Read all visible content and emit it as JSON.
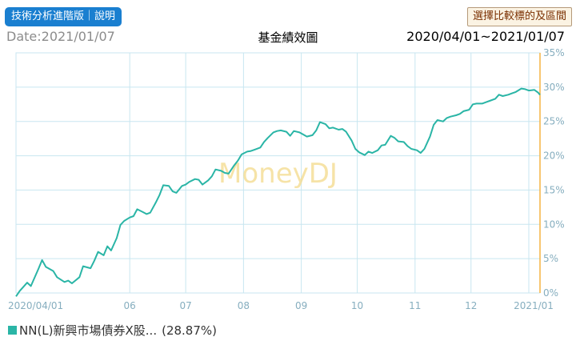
{
  "header": {
    "advanced_button": "技術分析進階版｜說明",
    "compare_button": "選擇比較標的及區間",
    "date_label": "Date:2021/01/07",
    "title": "基金績效圖",
    "range_label": "2020/04/01~2021/01/07"
  },
  "watermark": "MoneyDJ",
  "legend": {
    "name": "NN(L)新興市場債券X股...",
    "value": "(28.87%)"
  },
  "colors": {
    "series": "#2ab5a6",
    "grid": "#c8e6f0",
    "axis": "#f5b342",
    "tick": "#86aebf",
    "button": "#1a7fd0"
  },
  "chart_data": {
    "type": "line",
    "xlabels": [
      "2020/04/01",
      "06",
      "07",
      "08",
      "09",
      "10",
      "11",
      "12",
      "2021/01"
    ],
    "xlabel_dates": [
      "2020-04-01",
      "2020-06-01",
      "2020-07-01",
      "2020-08-01",
      "2020-09-01",
      "2020-10-01",
      "2020-11-01",
      "2020-12-01",
      "2021-01-01"
    ],
    "x_range": [
      "2020-04-01",
      "2021-01-07"
    ],
    "ylim": [
      0,
      35
    ],
    "yticks": [
      "0%",
      "5%",
      "10%",
      "15%",
      "20%",
      "25%",
      "30%",
      "35%"
    ],
    "grid": true,
    "series": [
      {
        "name": "NN(L)新興市場債券X股...",
        "points": [
          [
            "2020-04-01",
            -0.5
          ],
          [
            "2020-04-03",
            0.3
          ],
          [
            "2020-04-07",
            1.5
          ],
          [
            "2020-04-09",
            1.0
          ],
          [
            "2020-04-13",
            3.5
          ],
          [
            "2020-04-15",
            4.8
          ],
          [
            "2020-04-17",
            3.8
          ],
          [
            "2020-04-21",
            3.2
          ],
          [
            "2020-04-23",
            2.3
          ],
          [
            "2020-04-27",
            1.6
          ],
          [
            "2020-04-29",
            1.8
          ],
          [
            "2020-05-01",
            1.4
          ],
          [
            "2020-05-05",
            2.3
          ],
          [
            "2020-05-07",
            3.9
          ],
          [
            "2020-05-11",
            3.6
          ],
          [
            "2020-05-13",
            4.7
          ],
          [
            "2020-05-15",
            6.0
          ],
          [
            "2020-05-18",
            5.5
          ],
          [
            "2020-05-20",
            6.8
          ],
          [
            "2020-05-22",
            6.2
          ],
          [
            "2020-05-25",
            8.0
          ],
          [
            "2020-05-27",
            9.9
          ],
          [
            "2020-05-29",
            10.5
          ],
          [
            "2020-06-01",
            11.0
          ],
          [
            "2020-06-03",
            11.2
          ],
          [
            "2020-06-05",
            12.2
          ],
          [
            "2020-06-08",
            11.8
          ],
          [
            "2020-06-10",
            11.5
          ],
          [
            "2020-06-12",
            11.7
          ],
          [
            "2020-06-15",
            13.2
          ],
          [
            "2020-06-17",
            14.3
          ],
          [
            "2020-06-19",
            15.7
          ],
          [
            "2020-06-22",
            15.6
          ],
          [
            "2020-06-24",
            14.8
          ],
          [
            "2020-06-26",
            14.6
          ],
          [
            "2020-06-29",
            15.6
          ],
          [
            "2020-07-01",
            15.8
          ],
          [
            "2020-07-03",
            16.2
          ],
          [
            "2020-07-06",
            16.6
          ],
          [
            "2020-07-08",
            16.5
          ],
          [
            "2020-07-10",
            15.8
          ],
          [
            "2020-07-13",
            16.4
          ],
          [
            "2020-07-15",
            17.0
          ],
          [
            "2020-07-17",
            18.0
          ],
          [
            "2020-07-20",
            17.8
          ],
          [
            "2020-07-22",
            17.5
          ],
          [
            "2020-07-24",
            17.4
          ],
          [
            "2020-07-27",
            18.6
          ],
          [
            "2020-07-29",
            19.3
          ],
          [
            "2020-07-31",
            20.2
          ],
          [
            "2020-08-03",
            20.6
          ],
          [
            "2020-08-05",
            20.7
          ],
          [
            "2020-08-07",
            20.9
          ],
          [
            "2020-08-10",
            21.2
          ],
          [
            "2020-08-12",
            22.0
          ],
          [
            "2020-08-14",
            22.6
          ],
          [
            "2020-08-17",
            23.4
          ],
          [
            "2020-08-19",
            23.6
          ],
          [
            "2020-08-21",
            23.7
          ],
          [
            "2020-08-24",
            23.5
          ],
          [
            "2020-08-26",
            22.9
          ],
          [
            "2020-08-28",
            23.6
          ],
          [
            "2020-08-31",
            23.4
          ],
          [
            "2020-09-02",
            23.1
          ],
          [
            "2020-09-04",
            22.8
          ],
          [
            "2020-09-07",
            23.0
          ],
          [
            "2020-09-09",
            23.7
          ],
          [
            "2020-09-11",
            24.9
          ],
          [
            "2020-09-14",
            24.6
          ],
          [
            "2020-09-16",
            24.0
          ],
          [
            "2020-09-18",
            24.1
          ],
          [
            "2020-09-21",
            23.8
          ],
          [
            "2020-09-23",
            23.9
          ],
          [
            "2020-09-25",
            23.5
          ],
          [
            "2020-09-28",
            22.2
          ],
          [
            "2020-09-30",
            21.0
          ],
          [
            "2020-10-02",
            20.5
          ],
          [
            "2020-10-05",
            20.1
          ],
          [
            "2020-10-07",
            20.6
          ],
          [
            "2020-10-09",
            20.4
          ],
          [
            "2020-10-12",
            20.8
          ],
          [
            "2020-10-14",
            21.5
          ],
          [
            "2020-10-16",
            21.6
          ],
          [
            "2020-10-19",
            22.9
          ],
          [
            "2020-10-21",
            22.6
          ],
          [
            "2020-10-23",
            22.1
          ],
          [
            "2020-10-26",
            22.0
          ],
          [
            "2020-10-28",
            21.4
          ],
          [
            "2020-10-30",
            21.0
          ],
          [
            "2020-11-02",
            20.8
          ],
          [
            "2020-11-04",
            20.4
          ],
          [
            "2020-11-06",
            21.0
          ],
          [
            "2020-11-09",
            22.8
          ],
          [
            "2020-11-11",
            24.5
          ],
          [
            "2020-11-13",
            25.2
          ],
          [
            "2020-11-16",
            25.0
          ],
          [
            "2020-11-18",
            25.5
          ],
          [
            "2020-11-20",
            25.7
          ],
          [
            "2020-11-23",
            25.9
          ],
          [
            "2020-11-25",
            26.1
          ],
          [
            "2020-11-27",
            26.5
          ],
          [
            "2020-11-30",
            26.7
          ],
          [
            "2020-12-02",
            27.5
          ],
          [
            "2020-12-04",
            27.6
          ],
          [
            "2020-12-07",
            27.6
          ],
          [
            "2020-12-09",
            27.8
          ],
          [
            "2020-12-11",
            28.0
          ],
          [
            "2020-12-14",
            28.3
          ],
          [
            "2020-12-16",
            28.9
          ],
          [
            "2020-12-18",
            28.7
          ],
          [
            "2020-12-21",
            28.9
          ],
          [
            "2020-12-23",
            29.1
          ],
          [
            "2020-12-25",
            29.3
          ],
          [
            "2020-12-28",
            29.8
          ],
          [
            "2020-12-30",
            29.7
          ],
          [
            "2021-01-01",
            29.5
          ],
          [
            "2021-01-04",
            29.6
          ],
          [
            "2021-01-06",
            29.2
          ],
          [
            "2021-01-07",
            28.87
          ]
        ]
      }
    ]
  }
}
